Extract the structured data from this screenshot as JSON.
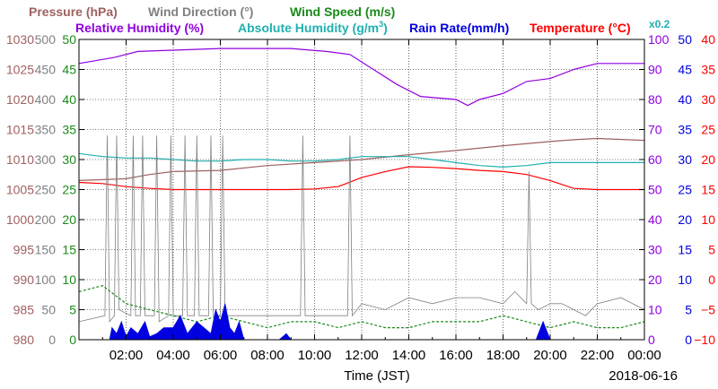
{
  "date": "2018-06-16",
  "legend": {
    "row1": [
      {
        "text": "Pressure (hPa)",
        "color": "#a06060"
      },
      {
        "text": "Wind Direction (°)",
        "color": "#808080"
      },
      {
        "text": "Wind Speed (m/s)",
        "color": "#1a8a1a"
      }
    ],
    "row2": [
      {
        "text": "Relative Humidity (%)",
        "color": "#9000e0"
      },
      {
        "text": "Absolute Humidity (g/m",
        "color": "#20b0b0"
      },
      {
        "text": "Rain Rate(mm/h)",
        "color": "#0000e0"
      },
      {
        "text": "Temperature (°C)",
        "color": "#ff0000"
      }
    ],
    "abs_hum_sup": "3",
    "abs_hum_close": ")",
    "scale_note": "x0.2"
  },
  "chart_data": {
    "type": "line",
    "xlabel": "Time (JST)",
    "x_ticks": [
      "02:00",
      "04:00",
      "06:00",
      "08:00",
      "10:00",
      "12:00",
      "14:00",
      "16:00",
      "18:00",
      "20:00",
      "22:00",
      "00:00"
    ],
    "xlim_hours": [
      0,
      24
    ],
    "axes": {
      "pressure": {
        "color": "#a06060",
        "range": [
          980,
          1030
        ],
        "ticks": [
          "1030",
          "1025",
          "1020",
          "1015",
          "1010",
          "1005",
          "1000",
          "995",
          "990",
          "985",
          "980"
        ]
      },
      "wind_dir": {
        "color": "#808080",
        "range": [
          0,
          500
        ],
        "ticks": [
          "500",
          "450",
          "400",
          "350",
          "300",
          "250",
          "200",
          "150",
          "100",
          "50",
          "0"
        ]
      },
      "wind_speed": {
        "color": "#1a8a1a",
        "range": [
          0,
          50
        ],
        "ticks": [
          "50",
          "45",
          "40",
          "35",
          "30",
          "25",
          "20",
          "15",
          "10",
          "5",
          "0"
        ]
      },
      "humidity": {
        "color": "#9000e0",
        "range": [
          0,
          100
        ],
        "ticks": [
          "100",
          "90",
          "80",
          "70",
          "60",
          "50",
          "40",
          "30",
          "20",
          "10",
          "0"
        ]
      },
      "rain": {
        "color": "#0000e0",
        "range": [
          0,
          50
        ],
        "ticks": [
          "50",
          "45",
          "40",
          "35",
          "30",
          "25",
          "20",
          "15",
          "10",
          "5",
          "0"
        ]
      },
      "temperature": {
        "color": "#ff0000",
        "range": [
          -10,
          40
        ],
        "ticks": [
          "40",
          "35",
          "30",
          "25",
          "20",
          "15",
          "10",
          "5",
          "0",
          "−5",
          "−10"
        ]
      }
    },
    "series": [
      {
        "name": "Relative Humidity (%)",
        "color": "#9000e0",
        "x": [
          0,
          1.5,
          2.5,
          6,
          9,
          10.5,
          11.5,
          12.5,
          13.5,
          14.5,
          16,
          16.5,
          17,
          18,
          19,
          20,
          21,
          22,
          24
        ],
        "y": [
          92,
          94,
          96,
          97,
          97,
          96,
          95,
          90,
          85,
          81,
          80,
          78,
          80,
          82,
          86,
          87,
          90,
          92,
          92
        ]
      },
      {
        "name": "Pressure (hPa)",
        "color": "#a06060",
        "x": [
          0,
          2,
          3,
          4,
          6,
          8,
          10,
          12,
          14,
          16,
          18,
          20,
          21,
          22,
          24
        ],
        "y": [
          1006.5,
          1006.8,
          1007.5,
          1008,
          1008.2,
          1009,
          1009.5,
          1010,
          1010.8,
          1011.5,
          1012.3,
          1013,
          1013.3,
          1013.5,
          1013.2
        ]
      },
      {
        "name": "Absolute Humidity (g/m3) x0.2",
        "color": "#20b0b0",
        "x": [
          0,
          1,
          2,
          3,
          4,
          5,
          6,
          7,
          8,
          9,
          10,
          11,
          12,
          13,
          14,
          15,
          16,
          17,
          18,
          19,
          20,
          22,
          24
        ],
        "y": [
          62,
          61,
          60.5,
          60.5,
          60,
          59.5,
          59.5,
          60,
          60,
          59.5,
          59.5,
          60,
          61,
          61,
          61,
          60,
          59,
          58,
          57.5,
          58,
          59,
          59,
          59
        ]
      },
      {
        "name": "Temperature (°C)",
        "color": "#ff0000",
        "x": [
          0,
          1,
          2,
          3,
          4,
          5,
          6,
          7,
          8,
          9,
          10,
          11,
          12,
          13,
          14,
          15,
          16,
          17,
          18,
          19,
          20,
          21,
          22,
          24
        ],
        "y": [
          16.2,
          16,
          15.5,
          15.2,
          15,
          15,
          15,
          15,
          15,
          15,
          15.1,
          15.5,
          17,
          18,
          18.8,
          18.7,
          18.5,
          18.2,
          18,
          17.5,
          16.5,
          15.2,
          15,
          15
        ]
      },
      {
        "name": "Wind Direction (°)",
        "color": "#808080",
        "x": [
          0,
          1.1,
          1.2,
          1.3,
          1.5,
          1.6,
          1.7,
          2.2,
          2.3,
          2.4,
          2.6,
          2.7,
          2.8,
          3.2,
          3.3,
          3.4,
          3.8,
          3.9,
          4.0,
          4.4,
          4.5,
          4.6,
          4.9,
          5.0,
          5.1,
          5.5,
          5.6,
          5.7,
          6.0,
          6.1,
          6.2,
          9.4,
          9.5,
          9.6,
          11.4,
          11.5,
          11.6,
          12,
          13,
          14,
          15,
          16,
          17,
          18,
          18.5,
          19,
          19.1,
          19.2,
          19.5,
          20,
          20.5,
          21,
          21.5,
          22,
          23,
          24
        ],
        "y": [
          30,
          40,
          340,
          30,
          40,
          340,
          50,
          40,
          340,
          40,
          40,
          340,
          40,
          40,
          340,
          30,
          40,
          340,
          40,
          40,
          340,
          40,
          40,
          340,
          40,
          40,
          340,
          40,
          40,
          340,
          40,
          40,
          340,
          40,
          40,
          340,
          40,
          60,
          50,
          70,
          60,
          70,
          70,
          60,
          80,
          60,
          280,
          60,
          50,
          60,
          60,
          50,
          40,
          60,
          70,
          50
        ]
      },
      {
        "name": "Wind Speed (m/s)",
        "color": "#1a8a1a",
        "x": [
          0,
          1,
          2,
          3,
          4,
          5,
          6,
          7,
          8,
          9,
          10,
          11,
          12,
          13,
          14,
          15,
          16,
          17,
          18,
          19,
          20,
          21,
          22,
          23,
          24
        ],
        "y": [
          8,
          9,
          6,
          5,
          4,
          3,
          4,
          3,
          2,
          3,
          3,
          2,
          3,
          2,
          2,
          3,
          3,
          3,
          4,
          3,
          2,
          3,
          2,
          2,
          3
        ]
      },
      {
        "name": "Rain Rate(mm/h)",
        "color": "#0000e0",
        "x": [
          0,
          1.3,
          1.4,
          1.6,
          1.8,
          2.0,
          2.2,
          2.5,
          2.8,
          3.0,
          3.3,
          3.6,
          4.0,
          4.3,
          4.6,
          5.0,
          5.3,
          5.6,
          5.8,
          6.0,
          6.2,
          6.4,
          6.6,
          6.8,
          7.0,
          8.5,
          8.8,
          9.0,
          19.4,
          19.5,
          19.7,
          19.9,
          20.0,
          24
        ],
        "y": [
          0,
          0,
          2,
          1,
          3,
          0.5,
          2,
          1,
          3,
          0.5,
          1,
          2,
          2,
          4,
          1,
          3,
          2,
          1,
          5,
          3,
          6,
          2,
          1,
          3,
          0,
          0,
          1,
          0,
          0,
          1,
          3,
          1,
          0,
          0
        ]
      }
    ]
  }
}
